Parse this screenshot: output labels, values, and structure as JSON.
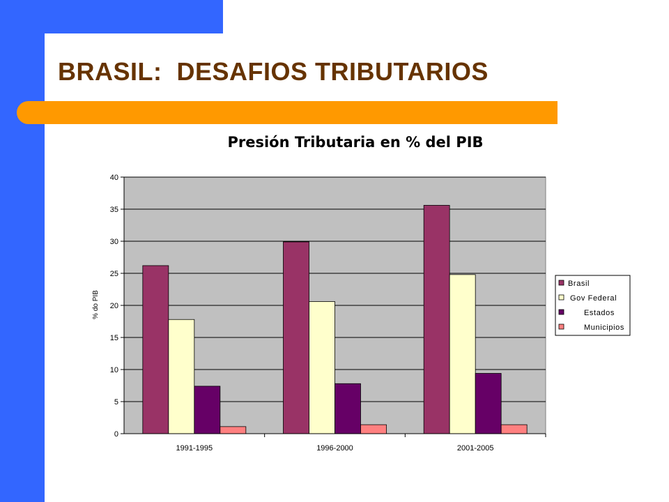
{
  "slide": {
    "title": "BRASIL:  DESAFIOS TRIBUTARIOS",
    "colors": {
      "sidebar": "#3366ff",
      "accent_bar": "#ff9900",
      "title": "#663300"
    }
  },
  "chart_data": {
    "type": "bar",
    "title": "Presión Tributaria en % del PIB",
    "xlabel": "",
    "ylabel": "% do PIB",
    "ylim": [
      0,
      40
    ],
    "yticks": [
      0,
      5,
      10,
      15,
      20,
      25,
      30,
      35,
      40
    ],
    "grid": true,
    "legend_position": "right",
    "plot_background": "#c0c0c0",
    "categories": [
      "1991-1995",
      "1996-2000",
      "2001-2005"
    ],
    "series": [
      {
        "name": "Brasil",
        "color": "#993366",
        "values": [
          26.2,
          29.9,
          35.6
        ]
      },
      {
        "name": "Gov Federal",
        "color": "#ffffcc",
        "values": [
          17.8,
          20.6,
          24.8
        ]
      },
      {
        "name": "Estados",
        "color": "#660066",
        "values": [
          7.4,
          7.8,
          9.4
        ]
      },
      {
        "name": "Municipios",
        "color": "#ff8080",
        "values": [
          1.1,
          1.4,
          1.4
        ]
      }
    ]
  }
}
